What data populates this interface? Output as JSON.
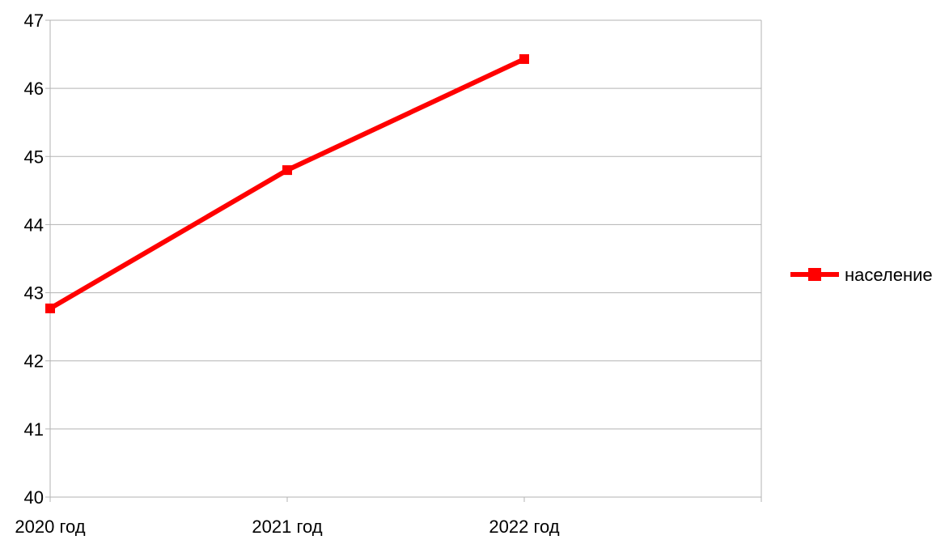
{
  "chart_data": {
    "type": "line",
    "title": "",
    "xlabel": "",
    "ylabel": "",
    "categories": [
      "2020 год",
      "2021 год",
      "2022 год"
    ],
    "ylim": [
      40,
      47
    ],
    "y_ticks": [
      "40",
      "41",
      "42",
      "43",
      "44",
      "45",
      "46",
      "47"
    ],
    "grid": true,
    "legend_position": "right",
    "series": [
      {
        "name": "население",
        "color": "#ff0000",
        "marker": "square",
        "values": [
          42.77,
          44.8,
          46.43
        ]
      }
    ]
  }
}
